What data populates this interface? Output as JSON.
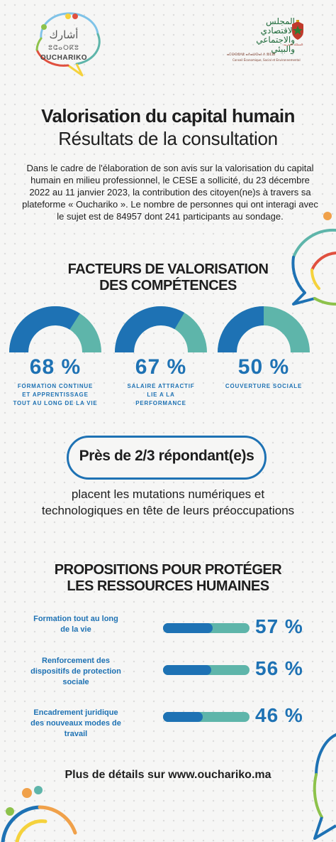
{
  "header": {
    "logo_left": {
      "arabic": "أشارك",
      "tifinagh": "ⵓⵛⴰⵔⴽⵓ",
      "latin": "OUCHARIKO"
    },
    "logo_right": {
      "arabic_lines": [
        "المجلس",
        "الاقتصادي",
        "والاجتماعي",
        "والبيئي"
      ],
      "arabic_small": "المملكة المغربية",
      "tifinagh": "ⴰⵎⵙⵙⵓⴷⵓ ⴰⴷⴰⵡⵙⴰⵏ ⴷ ⵓⵏⵎⵓⵏ",
      "french": "Conseil Économique, Social et Environnemental"
    },
    "emblem_icon": "coat-of-arms-icon"
  },
  "title_main": "Valorisation du capital humain",
  "title_sub": "Résultats de la consultation",
  "intro": "Dans le cadre de l'élaboration de son avis sur la valorisation du capital humain en milieu professionnel, le CESE a sollicité, du 23 décembre 2022 au 11 janvier 2023, la contribution des citoyen(ne)s à travers sa plateforme « Ouchariko ».  Le nombre de personnes qui ont interagi avec le sujet est de 84957 dont 241 participants au sondage.",
  "section1_title_lines": [
    "FACTEURS DE VALORISATION",
    "DES COMPÉTENCES"
  ],
  "factors": [
    {
      "percent": 68,
      "value_text": "68 %",
      "label_lines": [
        "FORMATION CONTINUE",
        "ET APPRENTISSAGE",
        "TOUT AU LONG DE LA VIE"
      ]
    },
    {
      "percent": 67,
      "value_text": "67 %",
      "label_lines": [
        "SALAIRE ATTRACTIF",
        "LIE A LA",
        "PERFORMANCE"
      ]
    },
    {
      "percent": 50,
      "value_text": "50 %",
      "label_lines": [
        "COUVERTURE SOCIALE"
      ]
    }
  ],
  "highlight": {
    "pill": "Près de 2/3 répondant(e)s",
    "sub_lines": [
      "placent les mutations numériques et",
      "technologiques en tête de leurs préoccupations"
    ]
  },
  "section2_title_lines": [
    "PROPOSITIONS POUR PROTÉGER",
    "LES RESSOURCES HUMAINES"
  ],
  "proposals": [
    {
      "label_lines": [
        "Formation tout au long",
        "de la vie"
      ],
      "percent": 57,
      "value_text": "57 %"
    },
    {
      "label_lines": [
        "Renforcement des",
        "dispositifs de protection",
        "sociale"
      ],
      "percent": 56,
      "value_text": "56 %"
    },
    {
      "label_lines": [
        "Encadrement juridique",
        "des nouveaux modes de",
        "travail"
      ],
      "percent": 46,
      "value_text": "46 %"
    }
  ],
  "footer": "Plus de détails sur www.ouchariko.ma",
  "colors": {
    "blue": "#1e72b4",
    "teal": "#5eb5aa",
    "orange": "#f0a14a",
    "red": "#e0503f",
    "green": "#8dc24b",
    "yellow": "#f5d23c"
  }
}
